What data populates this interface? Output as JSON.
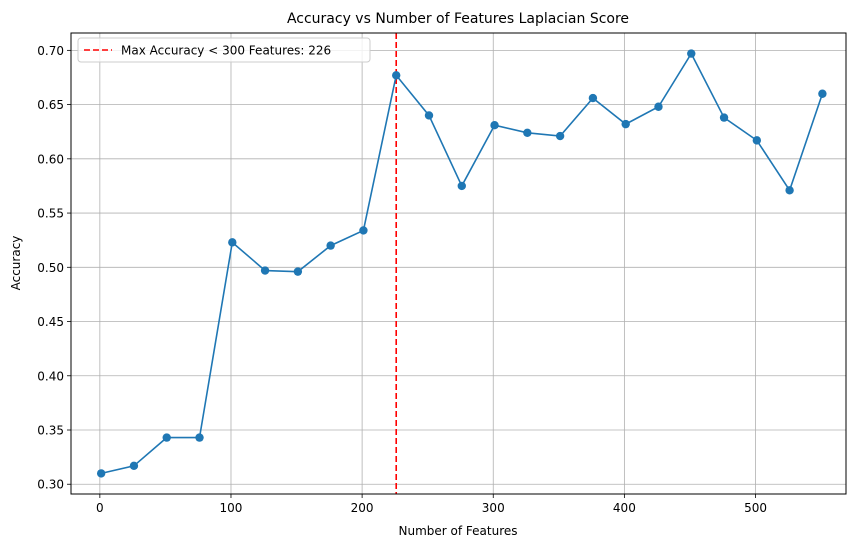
{
  "chart_data": {
    "type": "line",
    "title": "Accuracy vs Number of Features Laplacian Score",
    "xlabel": "Number of Features",
    "ylabel": "Accuracy",
    "xlim": [
      -22,
      569
    ],
    "ylim": [
      0.291,
      0.716
    ],
    "grid": true,
    "legend_position": "top-left",
    "x_ticks": [
      0,
      100,
      200,
      300,
      400,
      500
    ],
    "y_ticks": [
      0.3,
      0.35,
      0.4,
      0.45,
      0.5,
      0.55,
      0.6,
      0.65,
      0.7
    ],
    "series": [
      {
        "color": "#1f77b4",
        "marker": "circle",
        "x": [
          1,
          26,
          51,
          76,
          101,
          126,
          151,
          176,
          201,
          226,
          251,
          276,
          301,
          326,
          351,
          376,
          401,
          426,
          451,
          476,
          501,
          526,
          551
        ],
        "y": [
          0.31,
          0.317,
          0.343,
          0.343,
          0.523,
          0.497,
          0.496,
          0.52,
          0.534,
          0.677,
          0.64,
          0.575,
          0.631,
          0.624,
          0.621,
          0.656,
          0.632,
          0.648,
          0.697,
          0.638,
          0.617,
          0.571,
          0.66
        ]
      }
    ],
    "reference_line": {
      "orientation": "vertical",
      "x": 226,
      "color": "#ff0000",
      "style": "dashed",
      "label": "Max Accuracy < 300 Features: 226"
    }
  }
}
